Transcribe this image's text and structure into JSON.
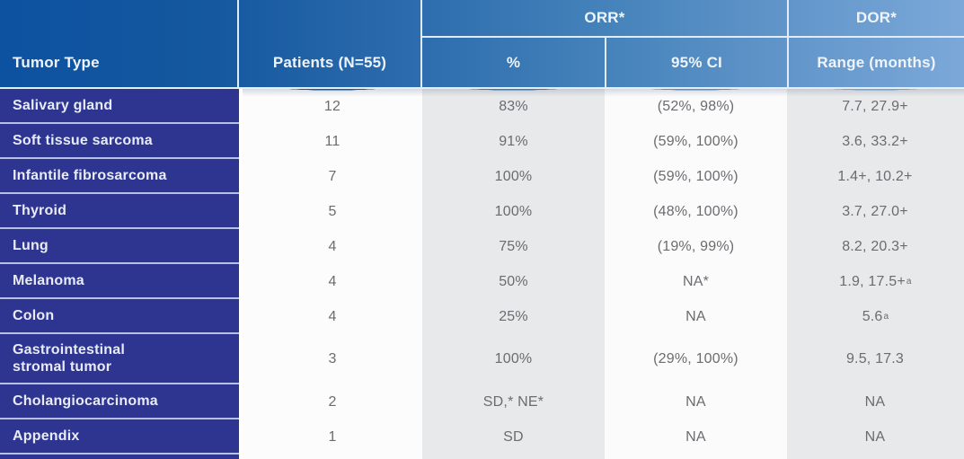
{
  "table": {
    "header": {
      "tumor_type": "Tumor Type",
      "patients": "Patients (N=55)",
      "orr_group": "ORR*",
      "dor_group": "DOR*",
      "orr_pct": "%",
      "orr_ci": "95% CI",
      "dor_range": "Range (months)"
    },
    "rows": [
      {
        "tumor": "Salivary gland",
        "patients": "12",
        "orr_pct": "83%",
        "ci": "(52%, 98%)",
        "range": "7.7, 27.9+"
      },
      {
        "tumor": "Soft tissue sarcoma",
        "patients": "11",
        "orr_pct": "91%",
        "ci": "(59%, 100%)",
        "range": "3.6, 33.2+"
      },
      {
        "tumor": "Infantile fibrosarcoma",
        "patients": "7",
        "orr_pct": "100%",
        "ci": "(59%, 100%)",
        "range": "1.4+, 10.2+"
      },
      {
        "tumor": "Thyroid",
        "patients": "5",
        "orr_pct": "100%",
        "ci": "(48%, 100%)",
        "range": "3.7, 27.0+"
      },
      {
        "tumor": "Lung",
        "patients": "4",
        "orr_pct": "75%",
        "ci": "(19%, 99%)",
        "range": "8.2, 20.3+"
      },
      {
        "tumor": "Melanoma",
        "patients": "4",
        "orr_pct": "50%",
        "ci": "NA*",
        "range": "1.9, 17.5+",
        "range_sup": "a"
      },
      {
        "tumor": "Colon",
        "patients": "4",
        "orr_pct": "25%",
        "ci": "NA",
        "range": "5.6",
        "range_sup": "a"
      },
      {
        "tumor": "Gastrointestinal\nstromal tumor",
        "patients": "3",
        "orr_pct": "100%",
        "ci": "(29%, 100%)",
        "range": "9.5, 17.3",
        "tall": true
      },
      {
        "tumor": "Cholangiocarcinoma",
        "patients": "2",
        "orr_pct": "SD,* NE*",
        "ci": "NA",
        "range": "NA"
      },
      {
        "tumor": "Appendix",
        "patients": "1",
        "orr_pct": "SD",
        "ci": "NA",
        "range": "NA"
      }
    ]
  },
  "chart_data": {
    "type": "table",
    "columns": [
      "Tumor Type",
      "Patients (N=55)",
      "ORR* %",
      "ORR* 95% CI",
      "DOR* Range (months)"
    ],
    "rows": [
      [
        "Salivary gland",
        "12",
        "83%",
        "(52%, 98%)",
        "7.7, 27.9+"
      ],
      [
        "Soft tissue sarcoma",
        "11",
        "91%",
        "(59%, 100%)",
        "3.6, 33.2+"
      ],
      [
        "Infantile fibrosarcoma",
        "7",
        "100%",
        "(59%, 100%)",
        "1.4+, 10.2+"
      ],
      [
        "Thyroid",
        "5",
        "100%",
        "(48%, 100%)",
        "3.7, 27.0+"
      ],
      [
        "Lung",
        "4",
        "75%",
        "(19%, 99%)",
        "8.2, 20.3+"
      ],
      [
        "Melanoma",
        "4",
        "50%",
        "NA*",
        "1.9, 17.5+ᵃ"
      ],
      [
        "Colon",
        "4",
        "25%",
        "NA",
        "5.6ᵃ"
      ],
      [
        "Gastrointestinal stromal tumor",
        "3",
        "100%",
        "(29%, 100%)",
        "9.5, 17.3"
      ],
      [
        "Cholangiocarcinoma",
        "2",
        "SD,* NE*",
        "NA",
        "NA"
      ],
      [
        "Appendix",
        "1",
        "SD",
        "NA",
        "NA"
      ]
    ],
    "total_patients": 55,
    "footnote_markers": [
      "*",
      "a"
    ],
    "layout": {
      "grouped_headers": {
        "ORR*": [
          "%",
          "95% CI"
        ],
        "DOR*": [
          "Range (months)"
        ]
      }
    }
  },
  "colors": {
    "header_gradient_left": "#0c52a0",
    "header_gradient_right": "#7ba8d9",
    "tumor_cell": "#2d3590",
    "row_divider": "#b7c1e3",
    "header_divider": "#e3ebf6",
    "light_column": "#fbfbfc",
    "gray_column": "#e8e9ea",
    "data_text": "#6b6c6f",
    "header_text": "#eef4fb"
  }
}
